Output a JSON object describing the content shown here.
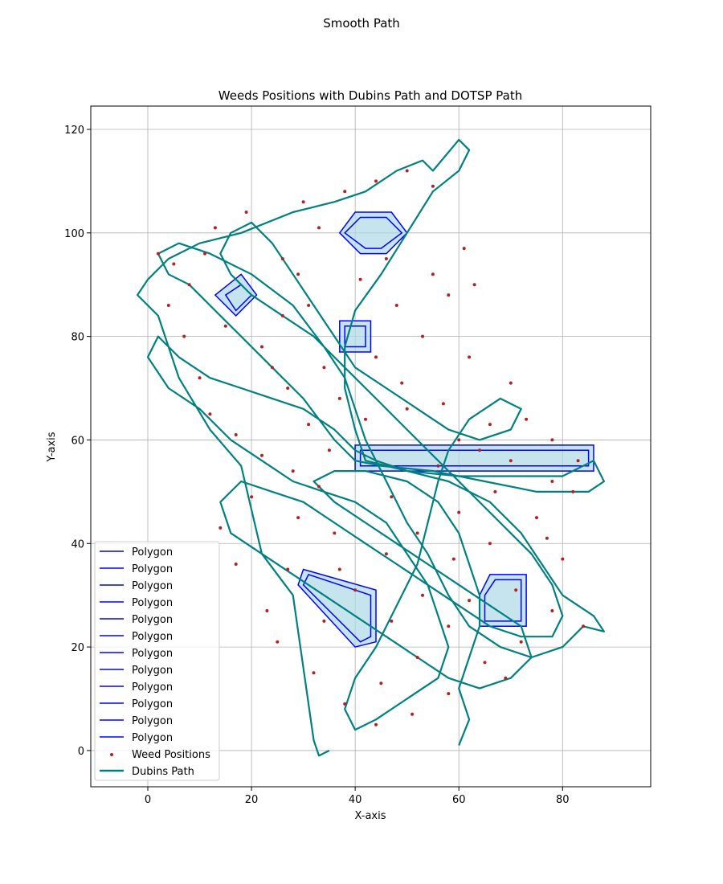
{
  "figure": {
    "suptitle": "Smooth Path"
  },
  "chart_data": {
    "type": "scatter",
    "title": "Weeds Positions with Dubins Path and DOTSP Path",
    "xlabel": "X-axis",
    "ylabel": "Y-axis",
    "xlim": [
      -11,
      97
    ],
    "ylim": [
      -7,
      124.5
    ],
    "xticks": [
      0,
      20,
      40,
      60,
      80
    ],
    "yticks": [
      0,
      20,
      40,
      60,
      80,
      100,
      120
    ],
    "grid": true,
    "legend_placement": "lower-left",
    "colors": {
      "polygon": "#0000ff",
      "fill": "#add8e6",
      "weed": "#b22222",
      "path": "#008080"
    },
    "polygons": [
      {
        "name": "Polygon",
        "outer": [
          [
            40,
            59
          ],
          [
            86,
            59
          ],
          [
            86,
            54
          ],
          [
            40,
            54
          ]
        ],
        "inner": [
          [
            41,
            58
          ],
          [
            85,
            58
          ],
          [
            85,
            55
          ],
          [
            41,
            55
          ]
        ]
      },
      {
        "name": "Polygon",
        "outer": [
          [
            40,
            104
          ],
          [
            47,
            104
          ],
          [
            50,
            100
          ],
          [
            46,
            96
          ],
          [
            41,
            96
          ],
          [
            37,
            100
          ]
        ],
        "inner": [
          [
            41,
            103
          ],
          [
            46,
            103
          ],
          [
            49,
            100
          ],
          [
            45,
            97
          ],
          [
            42,
            97
          ],
          [
            38,
            100
          ]
        ]
      },
      {
        "name": "Polygon",
        "outer": [
          [
            37,
            83
          ],
          [
            43,
            83
          ],
          [
            43,
            77
          ],
          [
            37,
            77
          ]
        ],
        "inner": [
          [
            38,
            82
          ],
          [
            42,
            82
          ],
          [
            42,
            78
          ],
          [
            38,
            78
          ]
        ]
      },
      {
        "name": "Polygon",
        "outer": [
          [
            18,
            92
          ],
          [
            21,
            88
          ],
          [
            17,
            84
          ],
          [
            13,
            88
          ]
        ],
        "inner": [
          [
            18,
            90
          ],
          [
            20,
            88
          ],
          [
            17,
            85
          ],
          [
            15,
            88
          ]
        ]
      },
      {
        "name": "Polygon",
        "outer": [
          [
            30,
            35
          ],
          [
            44,
            31
          ],
          [
            44,
            21
          ],
          [
            40,
            20
          ],
          [
            29,
            32
          ]
        ],
        "inner": [
          [
            31,
            34
          ],
          [
            43,
            30
          ],
          [
            43,
            22
          ],
          [
            41,
            21
          ],
          [
            30,
            32
          ]
        ]
      },
      {
        "name": "Polygon",
        "outer": [
          [
            66,
            34
          ],
          [
            73,
            34
          ],
          [
            73,
            24
          ],
          [
            64,
            24
          ],
          [
            64,
            30
          ]
        ],
        "inner": [
          [
            67,
            33
          ],
          [
            72,
            33
          ],
          [
            72,
            25
          ],
          [
            65,
            25
          ],
          [
            65,
            30
          ]
        ]
      }
    ],
    "weeds": [
      [
        2,
        96
      ],
      [
        5,
        94
      ],
      [
        8,
        90
      ],
      [
        11,
        96
      ],
      [
        15,
        82
      ],
      [
        22,
        78
      ],
      [
        27,
        70
      ],
      [
        34,
        74
      ],
      [
        31,
        86
      ],
      [
        26,
        95
      ],
      [
        33,
        101
      ],
      [
        38,
        108
      ],
      [
        44,
        110
      ],
      [
        50,
        112
      ],
      [
        55,
        109
      ],
      [
        61,
        97
      ],
      [
        58,
        88
      ],
      [
        62,
        76
      ],
      [
        70,
        71
      ],
      [
        73,
        64
      ],
      [
        66,
        63
      ],
      [
        57,
        67
      ],
      [
        50,
        66
      ],
      [
        42,
        64
      ],
      [
        35,
        58
      ],
      [
        28,
        54
      ],
      [
        20,
        49
      ],
      [
        14,
        43
      ],
      [
        17,
        36
      ],
      [
        23,
        27
      ],
      [
        25,
        21
      ],
      [
        32,
        15
      ],
      [
        38,
        9
      ],
      [
        44,
        5
      ],
      [
        51,
        7
      ],
      [
        58,
        11
      ],
      [
        65,
        17
      ],
      [
        72,
        21
      ],
      [
        78,
        27
      ],
      [
        84,
        24
      ],
      [
        80,
        37
      ],
      [
        75,
        45
      ],
      [
        67,
        50
      ],
      [
        60,
        46
      ],
      [
        52,
        42
      ],
      [
        46,
        38
      ],
      [
        53,
        30
      ],
      [
        58,
        24
      ],
      [
        47,
        25
      ],
      [
        40,
        31
      ],
      [
        36,
        42
      ],
      [
        29,
        45
      ],
      [
        33,
        51
      ],
      [
        47,
        49
      ],
      [
        56,
        55
      ],
      [
        64,
        58
      ],
      [
        70,
        56
      ],
      [
        78,
        52
      ],
      [
        82,
        50
      ],
      [
        77,
        41
      ],
      [
        7,
        80
      ],
      [
        10,
        72
      ],
      [
        12,
        65
      ],
      [
        4,
        86
      ],
      [
        13,
        101
      ],
      [
        19,
        104
      ],
      [
        30,
        106
      ],
      [
        41,
        91
      ],
      [
        48,
        86
      ],
      [
        53,
        80
      ],
      [
        49,
        71
      ],
      [
        44,
        76
      ],
      [
        26,
        84
      ],
      [
        17,
        61
      ],
      [
        22,
        57
      ],
      [
        31,
        63
      ],
      [
        37,
        68
      ],
      [
        59,
        37
      ],
      [
        66,
        40
      ],
      [
        71,
        31
      ],
      [
        62,
        29
      ],
      [
        69,
        14
      ],
      [
        52,
        18
      ],
      [
        45,
        13
      ],
      [
        34,
        25
      ],
      [
        27,
        35
      ],
      [
        37,
        35
      ],
      [
        55,
        92
      ],
      [
        63,
        90
      ],
      [
        46,
        95
      ],
      [
        29,
        92
      ],
      [
        24,
        74
      ],
      [
        60,
        60
      ],
      [
        78,
        60
      ],
      [
        83,
        56
      ]
    ],
    "path": [
      [
        35,
        0
      ],
      [
        33,
        -1
      ],
      [
        32,
        2
      ],
      [
        28,
        30
      ],
      [
        22,
        38
      ],
      [
        18,
        55
      ],
      [
        12,
        62
      ],
      [
        6,
        72
      ],
      [
        2,
        84
      ],
      [
        -2,
        88
      ],
      [
        0,
        91
      ],
      [
        4,
        95
      ],
      [
        10,
        98
      ],
      [
        18,
        100
      ],
      [
        28,
        104
      ],
      [
        36,
        106
      ],
      [
        42,
        108
      ],
      [
        48,
        112
      ],
      [
        53,
        114
      ],
      [
        55,
        112
      ],
      [
        60,
        118
      ],
      [
        62,
        116
      ],
      [
        60,
        112
      ],
      [
        55,
        108
      ],
      [
        50,
        100
      ],
      [
        45,
        92
      ],
      [
        40,
        85
      ],
      [
        38,
        78
      ],
      [
        38,
        70
      ],
      [
        40,
        62
      ],
      [
        42,
        56
      ],
      [
        50,
        54
      ],
      [
        60,
        53
      ],
      [
        70,
        53
      ],
      [
        80,
        53
      ],
      [
        86,
        56
      ],
      [
        88,
        52
      ],
      [
        85,
        50
      ],
      [
        75,
        50
      ],
      [
        65,
        52
      ],
      [
        55,
        54
      ],
      [
        45,
        55
      ],
      [
        40,
        56
      ],
      [
        36,
        60
      ],
      [
        30,
        68
      ],
      [
        24,
        74
      ],
      [
        18,
        80
      ],
      [
        12,
        86
      ],
      [
        8,
        90
      ],
      [
        4,
        92
      ],
      [
        2,
        96
      ],
      [
        6,
        98
      ],
      [
        12,
        96
      ],
      [
        20,
        92
      ],
      [
        28,
        86
      ],
      [
        34,
        78
      ],
      [
        38,
        72
      ],
      [
        40,
        66
      ],
      [
        42,
        60
      ],
      [
        46,
        52
      ],
      [
        50,
        44
      ],
      [
        54,
        38
      ],
      [
        58,
        30
      ],
      [
        62,
        24
      ],
      [
        68,
        20
      ],
      [
        74,
        18
      ],
      [
        80,
        20
      ],
      [
        84,
        24
      ],
      [
        88,
        23
      ],
      [
        86,
        26
      ],
      [
        80,
        30
      ],
      [
        76,
        36
      ],
      [
        72,
        42
      ],
      [
        66,
        48
      ],
      [
        58,
        52
      ],
      [
        50,
        54
      ],
      [
        44,
        56
      ],
      [
        40,
        58
      ],
      [
        36,
        62
      ],
      [
        30,
        66
      ],
      [
        24,
        68
      ],
      [
        18,
        70
      ],
      [
        12,
        72
      ],
      [
        6,
        76
      ],
      [
        2,
        80
      ],
      [
        0,
        76
      ],
      [
        4,
        70
      ],
      [
        10,
        66
      ],
      [
        16,
        60
      ],
      [
        22,
        56
      ],
      [
        28,
        52
      ],
      [
        34,
        50
      ],
      [
        40,
        48
      ],
      [
        46,
        44
      ],
      [
        50,
        38
      ],
      [
        54,
        32
      ],
      [
        56,
        26
      ],
      [
        58,
        20
      ],
      [
        56,
        14
      ],
      [
        50,
        10
      ],
      [
        44,
        6
      ],
      [
        40,
        4
      ],
      [
        38,
        8
      ],
      [
        40,
        14
      ],
      [
        44,
        20
      ],
      [
        48,
        28
      ],
      [
        52,
        36
      ],
      [
        54,
        44
      ],
      [
        56,
        52
      ],
      [
        58,
        58
      ],
      [
        62,
        64
      ],
      [
        68,
        68
      ],
      [
        72,
        66
      ],
      [
        70,
        62
      ],
      [
        64,
        60
      ],
      [
        58,
        62
      ],
      [
        52,
        66
      ],
      [
        46,
        70
      ],
      [
        40,
        74
      ],
      [
        36,
        80
      ],
      [
        32,
        86
      ],
      [
        28,
        92
      ],
      [
        24,
        98
      ],
      [
        20,
        102
      ],
      [
        16,
        100
      ],
      [
        14,
        96
      ],
      [
        16,
        92
      ],
      [
        20,
        88
      ],
      [
        26,
        84
      ],
      [
        32,
        80
      ],
      [
        38,
        74
      ],
      [
        44,
        68
      ],
      [
        50,
        62
      ],
      [
        56,
        56
      ],
      [
        62,
        50
      ],
      [
        68,
        44
      ],
      [
        74,
        38
      ],
      [
        78,
        32
      ],
      [
        80,
        26
      ],
      [
        78,
        22
      ],
      [
        72,
        22
      ],
      [
        66,
        24
      ],
      [
        60,
        28
      ],
      [
        54,
        32
      ],
      [
        48,
        36
      ],
      [
        42,
        40
      ],
      [
        36,
        44
      ],
      [
        30,
        48
      ],
      [
        24,
        50
      ],
      [
        18,
        52
      ],
      [
        14,
        48
      ],
      [
        16,
        42
      ],
      [
        22,
        38
      ],
      [
        28,
        34
      ],
      [
        34,
        30
      ],
      [
        40,
        26
      ],
      [
        46,
        22
      ],
      [
        52,
        18
      ],
      [
        58,
        14
      ],
      [
        64,
        12
      ],
      [
        70,
        14
      ],
      [
        74,
        18
      ],
      [
        72,
        24
      ],
      [
        66,
        28
      ],
      [
        60,
        32
      ],
      [
        54,
        36
      ],
      [
        48,
        40
      ],
      [
        42,
        44
      ],
      [
        36,
        48
      ],
      [
        32,
        52
      ],
      [
        36,
        54
      ],
      [
        42,
        54
      ],
      [
        50,
        52
      ],
      [
        56,
        48
      ],
      [
        60,
        42
      ],
      [
        62,
        36
      ],
      [
        64,
        30
      ],
      [
        64,
        24
      ],
      [
        62,
        18
      ],
      [
        60,
        12
      ],
      [
        62,
        6
      ],
      [
        60,
        1
      ]
    ],
    "legend": [
      "Polygon",
      "Polygon",
      "Polygon",
      "Polygon",
      "Polygon",
      "Polygon",
      "Polygon",
      "Polygon",
      "Polygon",
      "Polygon",
      "Polygon",
      "Polygon",
      "Weed Positions",
      "Dubins Path"
    ]
  }
}
